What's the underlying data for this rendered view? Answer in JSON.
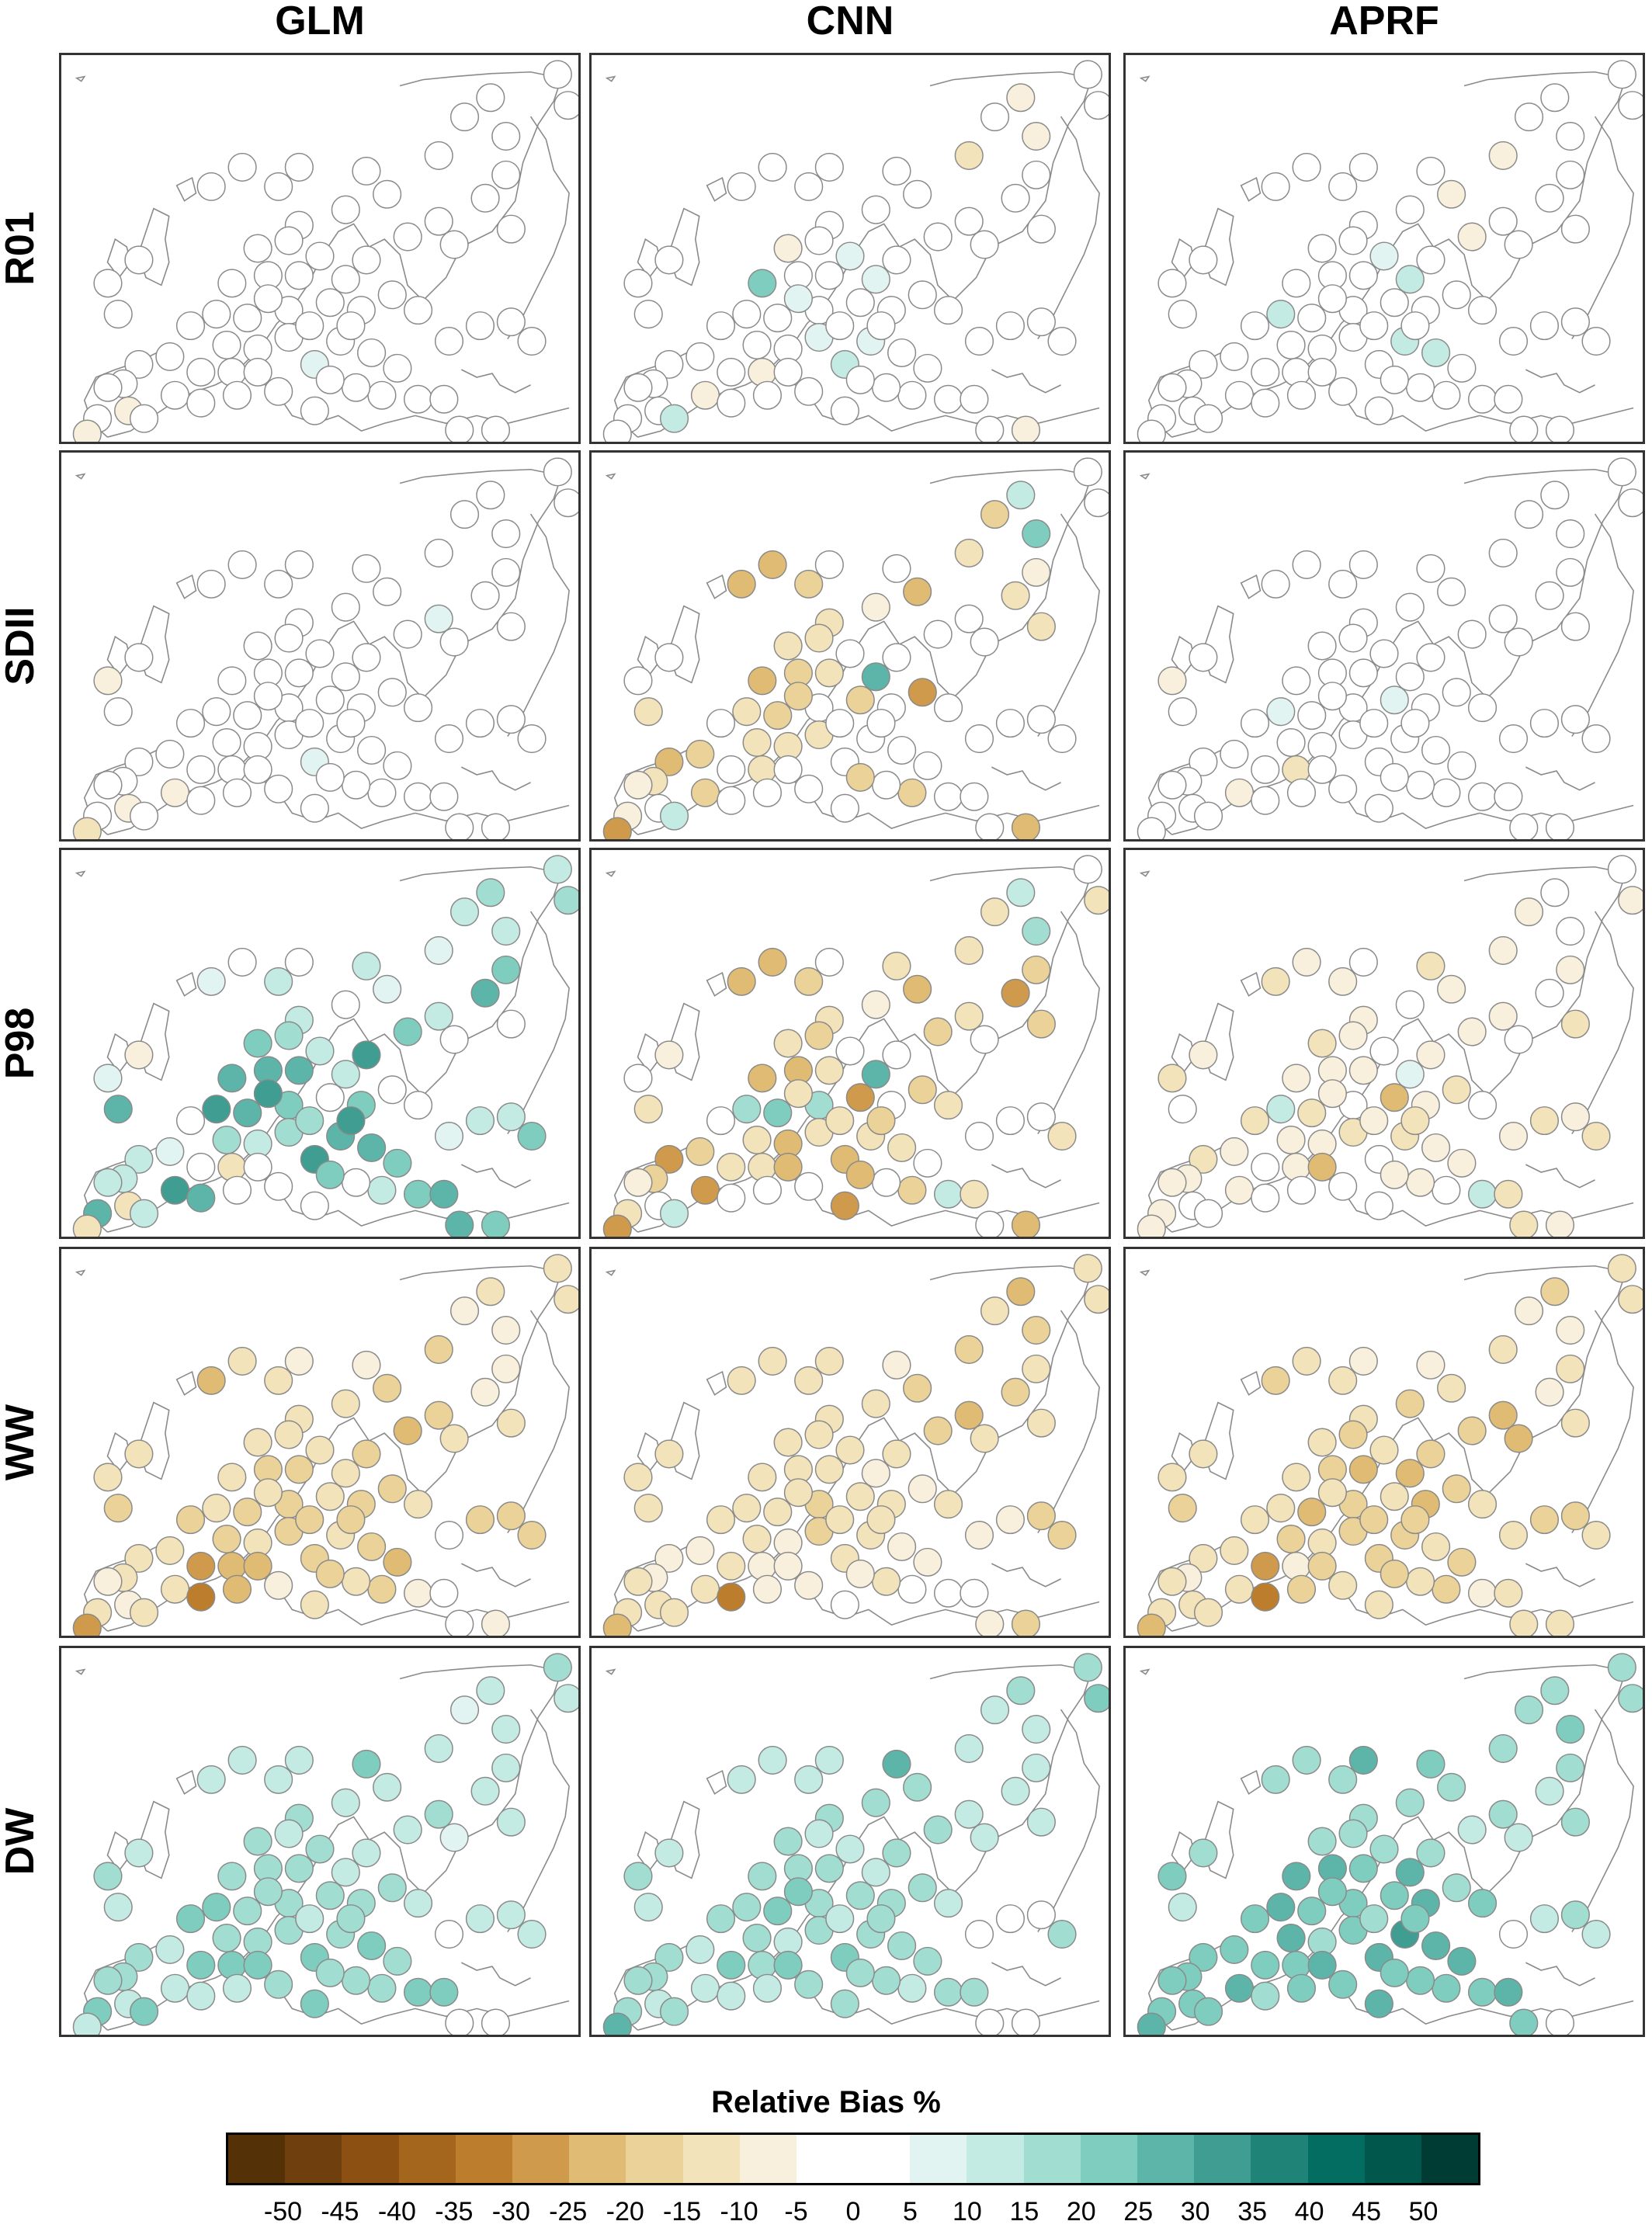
{
  "columns": [
    {
      "id": "glm",
      "label": "GLM"
    },
    {
      "id": "cnn",
      "label": "CNN"
    },
    {
      "id": "aprf",
      "label": "APRF"
    }
  ],
  "rows": [
    {
      "id": "r01",
      "label": "R01"
    },
    {
      "id": "sdii",
      "label": "SDII"
    },
    {
      "id": "p98",
      "label": "P98"
    },
    {
      "id": "ww",
      "label": "WW"
    },
    {
      "id": "dw",
      "label": "DW"
    }
  ],
  "legend": {
    "title": "Relative Bias %",
    "ticks": [
      -50,
      -45,
      -40,
      -35,
      -30,
      -25,
      -20,
      -15,
      -10,
      -5,
      0,
      5,
      10,
      15,
      20,
      25,
      30,
      35,
      40,
      45,
      50
    ],
    "range": [
      -55,
      55
    ],
    "bins": [
      {
        "from": -55,
        "to": -50,
        "color": "#553108"
      },
      {
        "from": -50,
        "to": -45,
        "color": "#6f400d"
      },
      {
        "from": -45,
        "to": -40,
        "color": "#8c5112"
      },
      {
        "from": -40,
        "to": -35,
        "color": "#a4661d"
      },
      {
        "from": -35,
        "to": -30,
        "color": "#bc7d2c"
      },
      {
        "from": -30,
        "to": -25,
        "color": "#d09a4c"
      },
      {
        "from": -25,
        "to": -20,
        "color": "#dfbb73"
      },
      {
        "from": -20,
        "to": -15,
        "color": "#ead298"
      },
      {
        "from": -15,
        "to": -10,
        "color": "#f3e3ba"
      },
      {
        "from": -10,
        "to": -5,
        "color": "#f8f0dc"
      },
      {
        "from": -5,
        "to": 5,
        "color": "#ffffff"
      },
      {
        "from": 5,
        "to": 10,
        "color": "#e2f4f1"
      },
      {
        "from": 10,
        "to": 15,
        "color": "#c4ebe3"
      },
      {
        "from": 15,
        "to": 20,
        "color": "#a2ddd2"
      },
      {
        "from": 20,
        "to": 25,
        "color": "#7fcdbf"
      },
      {
        "from": 25,
        "to": 30,
        "color": "#5cb5a8"
      },
      {
        "from": 30,
        "to": 35,
        "color": "#3f9d91"
      },
      {
        "from": 35,
        "to": 40,
        "color": "#1f8378"
      },
      {
        "from": 40,
        "to": 45,
        "color": "#046d61"
      },
      {
        "from": 45,
        "to": 50,
        "color": "#01574c"
      },
      {
        "from": 50,
        "to": 55,
        "color": "#003c33"
      }
    ]
  },
  "map": {
    "land_line_color": "#8a8a8a",
    "marker_edge_color": "#8a8a8a",
    "frame_color": "#333333"
  },
  "stations": [
    [
      0.96,
      0.05
    ],
    [
      0.83,
      0.11
    ],
    [
      0.86,
      0.21
    ],
    [
      0.78,
      0.16
    ],
    [
      0.73,
      0.26
    ],
    [
      0.86,
      0.31
    ],
    [
      0.82,
      0.37
    ],
    [
      0.63,
      0.36
    ],
    [
      0.55,
      0.4
    ],
    [
      0.46,
      0.44
    ],
    [
      0.44,
      0.48
    ],
    [
      0.38,
      0.5
    ],
    [
      0.42,
      0.34
    ],
    [
      0.46,
      0.29
    ],
    [
      0.35,
      0.29
    ],
    [
      0.29,
      0.34
    ],
    [
      0.73,
      0.43
    ],
    [
      0.67,
      0.47
    ],
    [
      0.76,
      0.49
    ],
    [
      0.87,
      0.45
    ],
    [
      0.59,
      0.53
    ],
    [
      0.5,
      0.52
    ],
    [
      0.46,
      0.57
    ],
    [
      0.4,
      0.57
    ],
    [
      0.44,
      0.66
    ],
    [
      0.36,
      0.68
    ],
    [
      0.3,
      0.67
    ],
    [
      0.32,
      0.75
    ],
    [
      0.38,
      0.76
    ],
    [
      0.44,
      0.73
    ],
    [
      0.52,
      0.64
    ],
    [
      0.55,
      0.58
    ],
    [
      0.58,
      0.66
    ],
    [
      0.54,
      0.74
    ],
    [
      0.6,
      0.77
    ],
    [
      0.65,
      0.81
    ],
    [
      0.62,
      0.88
    ],
    [
      0.69,
      0.89
    ],
    [
      0.74,
      0.89
    ],
    [
      0.77,
      0.97
    ],
    [
      0.84,
      0.97
    ],
    [
      0.75,
      0.74
    ],
    [
      0.81,
      0.7
    ],
    [
      0.87,
      0.69
    ],
    [
      0.91,
      0.74
    ],
    [
      0.21,
      0.78
    ],
    [
      0.15,
      0.8
    ],
    [
      0.12,
      0.85
    ],
    [
      0.22,
      0.88
    ],
    [
      0.13,
      0.92
    ],
    [
      0.09,
      0.86
    ],
    [
      0.07,
      0.94
    ],
    [
      0.05,
      0.98
    ],
    [
      0.16,
      0.94
    ],
    [
      0.33,
      0.82
    ],
    [
      0.42,
      0.87
    ],
    [
      0.49,
      0.92
    ],
    [
      0.57,
      0.86
    ],
    [
      0.09,
      0.59
    ],
    [
      0.15,
      0.53
    ],
    [
      0.11,
      0.67
    ],
    [
      0.25,
      0.7
    ],
    [
      0.27,
      0.82
    ],
    [
      0.38,
      0.82
    ],
    [
      0.49,
      0.8
    ],
    [
      0.52,
      0.84
    ],
    [
      0.69,
      0.66
    ],
    [
      0.98,
      0.13
    ],
    [
      0.59,
      0.3
    ],
    [
      0.64,
      0.62
    ],
    [
      0.27,
      0.9
    ],
    [
      0.34,
      0.88
    ],
    [
      0.48,
      0.7
    ],
    [
      0.56,
      0.7
    ],
    [
      0.4,
      0.63
    ],
    [
      0.33,
      0.59
    ]
  ],
  "values": {
    "r01": {
      "glm": [
        0,
        0,
        0,
        0,
        0,
        0,
        0,
        0,
        0,
        0,
        0,
        0,
        0,
        0,
        0,
        0,
        0,
        0,
        0,
        0,
        0,
        0,
        0,
        0,
        0,
        0,
        0,
        0,
        0,
        0,
        0,
        0,
        0,
        0,
        0,
        0,
        0,
        0,
        0,
        0,
        0,
        0,
        0,
        0,
        0,
        0,
        0,
        0,
        0,
        -8,
        0,
        0,
        -10,
        0,
        0,
        0,
        0,
        0,
        0,
        0,
        0,
        0,
        0,
        0,
        8,
        0,
        0,
        0,
        0,
        0,
        0,
        0,
        0,
        0,
        0,
        0
      ],
      "cnn": [
        0,
        -8,
        -10,
        0,
        -12,
        0,
        0,
        0,
        0,
        0,
        0,
        -8,
        0,
        0,
        0,
        0,
        0,
        0,
        0,
        0,
        0,
        8,
        0,
        0,
        0,
        0,
        0,
        0,
        0,
        8,
        0,
        8,
        0,
        6,
        0,
        0,
        0,
        0,
        0,
        0,
        -8,
        0,
        0,
        0,
        0,
        0,
        0,
        0,
        -10,
        0,
        0,
        0,
        0,
        12,
        -8,
        0,
        0,
        0,
        0,
        0,
        0,
        0,
        0,
        0,
        10,
        0,
        0,
        0,
        0,
        0,
        0,
        0,
        0,
        0,
        8,
        20
      ],
      "aprf": [
        0,
        0,
        0,
        0,
        -8,
        0,
        0,
        -10,
        0,
        0,
        0,
        0,
        0,
        0,
        0,
        0,
        0,
        -6,
        0,
        0,
        0,
        8,
        0,
        0,
        0,
        0,
        10,
        0,
        0,
        0,
        0,
        10,
        0,
        12,
        10,
        0,
        0,
        0,
        0,
        0,
        0,
        0,
        0,
        0,
        0,
        0,
        0,
        0,
        0,
        0,
        0,
        0,
        0,
        0,
        0,
        0,
        0,
        0,
        0,
        0,
        0,
        0,
        0,
        0,
        0,
        0,
        0,
        0,
        0,
        0,
        0,
        0,
        0,
        0,
        0,
        0
      ]
    },
    "sdii": {
      "glm": [
        0,
        0,
        0,
        0,
        0,
        0,
        0,
        0,
        0,
        0,
        0,
        0,
        0,
        0,
        0,
        0,
        8,
        0,
        0,
        0,
        0,
        0,
        0,
        0,
        0,
        0,
        0,
        0,
        0,
        0,
        0,
        0,
        0,
        0,
        0,
        0,
        0,
        0,
        0,
        0,
        0,
        0,
        0,
        0,
        0,
        0,
        0,
        0,
        -10,
        -8,
        0,
        0,
        -15,
        0,
        0,
        0,
        0,
        0,
        -10,
        0,
        0,
        0,
        0,
        0,
        8,
        0,
        0,
        0,
        0,
        0,
        0,
        0,
        0,
        0,
        0,
        0
      ],
      "cnn": [
        0,
        10,
        20,
        -18,
        -15,
        -10,
        -15,
        -25,
        -10,
        -12,
        -15,
        -12,
        -20,
        0,
        -25,
        -25,
        0,
        0,
        0,
        -15,
        0,
        0,
        -15,
        -20,
        0,
        -20,
        -15,
        -15,
        -15,
        -15,
        -18,
        25,
        0,
        0,
        0,
        0,
        -20,
        0,
        0,
        0,
        -25,
        0,
        0,
        0,
        0,
        -18,
        -25,
        -15,
        -20,
        0,
        -10,
        -10,
        -28,
        10,
        -15,
        0,
        0,
        0,
        0,
        0,
        -15,
        0,
        0,
        0,
        0,
        -18,
        0,
        0,
        0,
        -28,
        0,
        0,
        0,
        0,
        -20,
        -25
      ],
      "aprf": [
        0,
        0,
        0,
        0,
        0,
        0,
        0,
        0,
        0,
        0,
        0,
        0,
        0,
        0,
        0,
        0,
        0,
        0,
        0,
        0,
        0,
        0,
        0,
        0,
        0,
        0,
        8,
        0,
        0,
        0,
        8,
        0,
        0,
        0,
        0,
        0,
        0,
        0,
        0,
        0,
        0,
        0,
        0,
        0,
        0,
        0,
        0,
        0,
        -10,
        0,
        0,
        0,
        0,
        0,
        -12,
        0,
        0,
        0,
        -10,
        0,
        0,
        0,
        0,
        0,
        0,
        0,
        0,
        0,
        0,
        0,
        0,
        0,
        0,
        0,
        0,
        0
      ]
    },
    "p98": {
      "glm": [
        10,
        15,
        12,
        10,
        8,
        20,
        25,
        8,
        0,
        10,
        15,
        20,
        12,
        0,
        0,
        8,
        10,
        20,
        0,
        0,
        30,
        10,
        25,
        25,
        20,
        25,
        30,
        15,
        10,
        15,
        0,
        10,
        20,
        25,
        25,
        20,
        12,
        20,
        25,
        25,
        20,
        8,
        10,
        12,
        20,
        8,
        12,
        10,
        30,
        -15,
        10,
        25,
        -15,
        10,
        -15,
        0,
        0,
        0,
        8,
        -10,
        25,
        0,
        0,
        0,
        30,
        20,
        0,
        15,
        12,
        0,
        25,
        0,
        15,
        30,
        30,
        25
      ],
      "cnn": [
        0,
        10,
        15,
        -15,
        -15,
        -20,
        -28,
        -25,
        -10,
        -15,
        -18,
        -12,
        -20,
        0,
        -25,
        -25,
        -15,
        -20,
        0,
        -18,
        0,
        0,
        -15,
        -25,
        15,
        20,
        15,
        -15,
        -25,
        -15,
        -28,
        25,
        0,
        -15,
        -15,
        0,
        -20,
        10,
        -15,
        0,
        -25,
        0,
        0,
        0,
        -15,
        -18,
        -30,
        -20,
        -28,
        0,
        -10,
        -15,
        -30,
        10,
        -15,
        0,
        -28,
        0,
        0,
        -10,
        -12,
        0,
        -15,
        -25,
        -25,
        -25,
        -12,
        -15,
        -12,
        -20,
        0,
        0,
        -15,
        -20,
        -15,
        -25
      ],
      "aprf": [
        0,
        0,
        0,
        -8,
        -8,
        -10,
        0,
        -10,
        0,
        -10,
        -8,
        -12,
        -10,
        0,
        -10,
        -12,
        -10,
        -10,
        0,
        -12,
        -10,
        0,
        -10,
        -10,
        0,
        -12,
        10,
        -10,
        -10,
        -15,
        -25,
        8,
        -10,
        -12,
        -10,
        -10,
        0,
        10,
        -15,
        -15,
        -8,
        -8,
        -15,
        -10,
        -15,
        -10,
        -12,
        -10,
        -10,
        0,
        -10,
        -10,
        -8,
        0,
        -10,
        0,
        0,
        -8,
        -15,
        -10,
        0,
        -15,
        0,
        -25,
        0,
        -8,
        0,
        -10,
        -12,
        -15,
        0,
        0,
        -10,
        -12,
        -10,
        -8
      ]
    },
    "ww": {
      "glm": [
        -15,
        -12,
        -8,
        -10,
        -20,
        -8,
        -8,
        -20,
        -15,
        -15,
        -15,
        -15,
        -12,
        -8,
        -15,
        -25,
        -20,
        -25,
        -15,
        -15,
        -20,
        -15,
        -20,
        -20,
        -20,
        -20,
        -15,
        -20,
        -15,
        -20,
        -15,
        -15,
        -20,
        -15,
        -20,
        -25,
        -20,
        -10,
        0,
        0,
        -10,
        0,
        -20,
        -20,
        -20,
        -12,
        -12,
        -12,
        -15,
        -10,
        -10,
        -12,
        -30,
        -15,
        -25,
        -10,
        -15,
        -12,
        -15,
        -15,
        -20,
        -20,
        -30,
        -25,
        -20,
        -20,
        -15,
        -15,
        -10,
        -20,
        -35,
        -25,
        -20,
        -20,
        -15,
        -15
      ],
      "cnn": [
        -15,
        -25,
        -20,
        -12,
        -20,
        -15,
        -20,
        -20,
        -15,
        -15,
        -15,
        -15,
        -12,
        -15,
        -15,
        -15,
        -25,
        -20,
        -15,
        -15,
        -15,
        -15,
        -15,
        -15,
        -20,
        -15,
        -15,
        -15,
        -10,
        -20,
        -12,
        -10,
        -15,
        -15,
        -10,
        -10,
        0,
        0,
        0,
        -10,
        -20,
        -10,
        -10,
        -20,
        -20,
        -10,
        -10,
        -10,
        -15,
        -12,
        -15,
        -15,
        -25,
        -15,
        -10,
        -10,
        0,
        -12,
        -15,
        -15,
        -15,
        -15,
        -12,
        -10,
        -15,
        -10,
        -12,
        -15,
        -10,
        -10,
        -35,
        -10,
        -15,
        -15,
        -15,
        -15
      ],
      "aprf": [
        -15,
        -20,
        -10,
        -10,
        -15,
        -12,
        -10,
        -15,
        -20,
        -15,
        -20,
        -15,
        -12,
        -10,
        -15,
        -20,
        -25,
        -20,
        -25,
        -15,
        -20,
        -15,
        -25,
        -20,
        -20,
        -25,
        -15,
        -20,
        -15,
        -20,
        -15,
        -25,
        -25,
        -20,
        -15,
        -20,
        -20,
        -10,
        -12,
        -15,
        -15,
        -15,
        -20,
        -20,
        -15,
        -15,
        -12,
        -10,
        -15,
        -15,
        -12,
        -12,
        -25,
        -15,
        -10,
        -15,
        -15,
        -12,
        -15,
        -15,
        -20,
        -15,
        -30,
        -20,
        -20,
        -20,
        -12,
        -15,
        -10,
        -20,
        -35,
        -20,
        -20,
        -20,
        -15,
        -15
      ]
    },
    "dw": {
      "glm": [
        15,
        10,
        12,
        8,
        10,
        10,
        10,
        10,
        10,
        15,
        10,
        15,
        12,
        10,
        10,
        12,
        15,
        10,
        8,
        10,
        10,
        15,
        15,
        15,
        15,
        15,
        20,
        15,
        15,
        15,
        15,
        12,
        15,
        15,
        20,
        15,
        15,
        20,
        20,
        0,
        0,
        0,
        10,
        12,
        10,
        12,
        15,
        15,
        10,
        12,
        15,
        20,
        12,
        20,
        20,
        15,
        20,
        15,
        15,
        12,
        10,
        20,
        20,
        20,
        20,
        15,
        10,
        10,
        20,
        15,
        10,
        10,
        10,
        15,
        15,
        15
      ],
      "cnn": [
        15,
        15,
        12,
        10,
        10,
        10,
        10,
        15,
        15,
        15,
        10,
        15,
        12,
        10,
        10,
        10,
        12,
        15,
        10,
        10,
        15,
        12,
        15,
        15,
        15,
        20,
        15,
        15,
        12,
        15,
        15,
        12,
        15,
        15,
        15,
        15,
        12,
        15,
        15,
        0,
        0,
        0,
        0,
        0,
        15,
        10,
        15,
        15,
        10,
        10,
        15,
        15,
        25,
        15,
        15,
        15,
        15,
        15,
        15,
        12,
        10,
        15,
        20,
        20,
        20,
        15,
        10,
        20,
        25,
        15,
        10,
        10,
        10,
        15,
        20,
        15
      ],
      "aprf": [
        15,
        15,
        20,
        15,
        15,
        15,
        10,
        15,
        15,
        15,
        15,
        15,
        15,
        25,
        15,
        15,
        15,
        10,
        12,
        15,
        15,
        15,
        20,
        25,
        20,
        20,
        25,
        25,
        15,
        20,
        20,
        25,
        25,
        30,
        25,
        25,
        20,
        20,
        25,
        20,
        0,
        0,
        10,
        15,
        10,
        20,
        20,
        20,
        25,
        20,
        20,
        20,
        25,
        20,
        20,
        20,
        25,
        20,
        20,
        15,
        10,
        20,
        20,
        25,
        25,
        20,
        20,
        15,
        20,
        15,
        15,
        20,
        15,
        20,
        20,
        25
      ]
    }
  }
}
